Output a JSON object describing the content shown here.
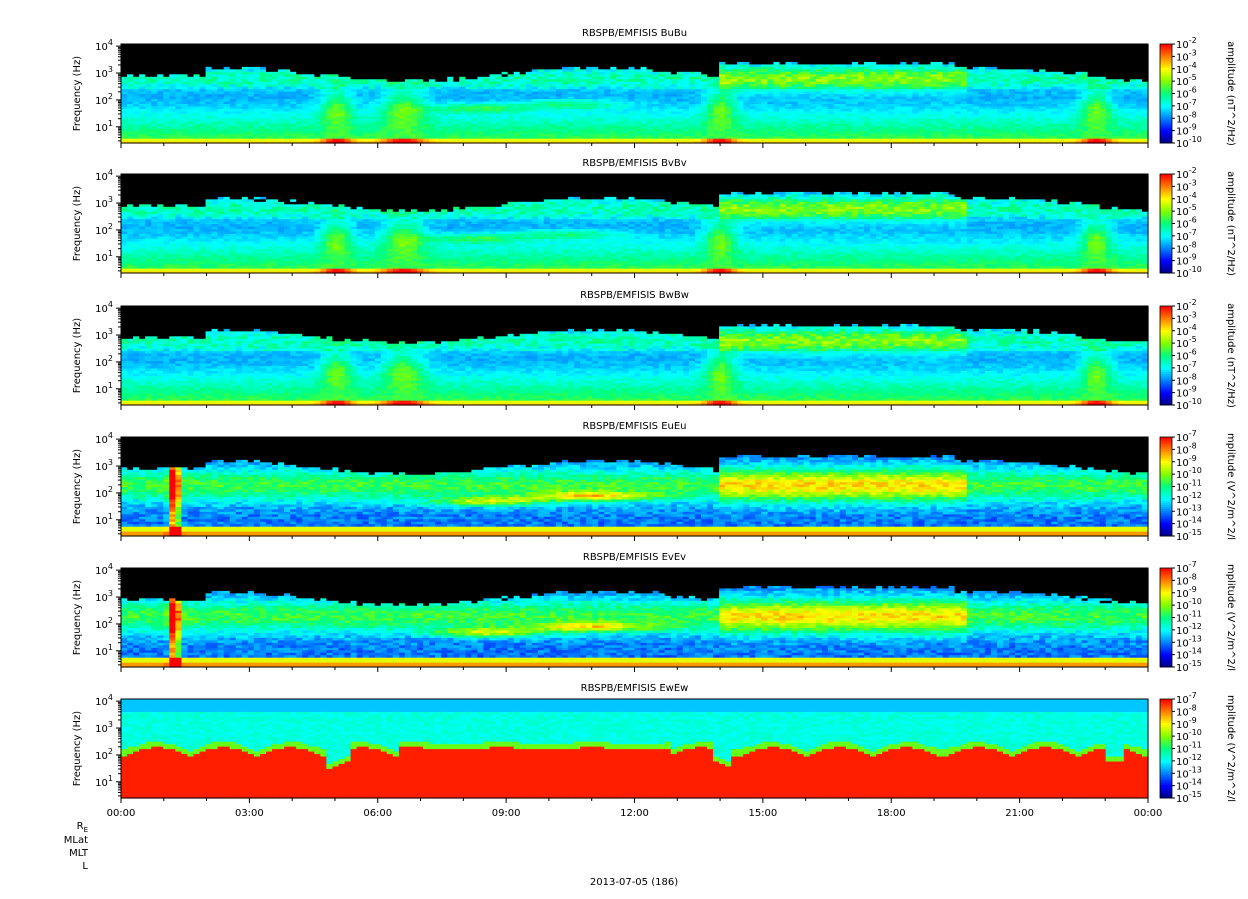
{
  "chart_data": {
    "type": "heatmap",
    "date_label": "2013-07-05 (186)",
    "x_ticks": [
      "00:00",
      "03:00",
      "06:00",
      "09:00",
      "12:00",
      "15:00",
      "18:00",
      "21:00",
      "00:00"
    ],
    "x_range_hours": [
      0,
      24
    ],
    "ephemeris_labels": {
      "re": "R",
      "re_sub": "E",
      "mlat": "MLat",
      "mlt": "MLT",
      "l": "L"
    },
    "y_label": "Frequency (Hz)",
    "y_scale": "log",
    "y_range_hz": [
      2.5,
      12000
    ],
    "y_ticks": [
      {
        "base": "10",
        "exp": "1",
        "value": 10
      },
      {
        "base": "10",
        "exp": "2",
        "value": 100
      },
      {
        "base": "10",
        "exp": "3",
        "value": 1000
      },
      {
        "base": "10",
        "exp": "4",
        "value": 10000
      }
    ],
    "colormap": [
      "#000080",
      "#0000ff",
      "#0080ff",
      "#00ffff",
      "#00ff80",
      "#80ff00",
      "#ffff00",
      "#ff8000",
      "#ff0000"
    ],
    "panels": [
      {
        "title": "RBSPB/EMFISIS  BuBu",
        "kind": "B",
        "cb_label": "amplitude (nT^2/Hz)",
        "cb_exps": [
          "-2",
          "-3",
          "-4",
          "-5",
          "-6",
          "-7",
          "-8",
          "-9",
          "-10"
        ],
        "cb_range_log10": [
          -10,
          -2
        ]
      },
      {
        "title": "RBSPB/EMFISIS  BvBv",
        "kind": "B",
        "cb_label": "amplitude (nT^2/Hz)",
        "cb_exps": [
          "-2",
          "-3",
          "-4",
          "-5",
          "-6",
          "-7",
          "-8",
          "-9",
          "-10"
        ],
        "cb_range_log10": [
          -10,
          -2
        ]
      },
      {
        "title": "RBSPB/EMFISIS  BwBw",
        "kind": "Bw",
        "cb_label": "amplitude (nT^2/Hz)",
        "cb_exps": [
          "-2",
          "-3",
          "-4",
          "-5",
          "-6",
          "-7",
          "-8",
          "-9",
          "-10"
        ],
        "cb_range_log10": [
          -10,
          -2
        ]
      },
      {
        "title": "RBSPB/EMFISIS  EuEu",
        "kind": "E",
        "cb_label": "mplitude (V^2/m^2/l",
        "cb_exps": [
          "-7",
          "-8",
          "-9",
          "-10",
          "-11",
          "-12",
          "-13",
          "-14",
          "-15"
        ],
        "cb_range_log10": [
          -15,
          -7
        ]
      },
      {
        "title": "RBSPB/EMFISIS  EvEv",
        "kind": "E",
        "cb_label": "mplitude (V^2/m^2/l",
        "cb_exps": [
          "-7",
          "-8",
          "-9",
          "-10",
          "-11",
          "-12",
          "-13",
          "-14",
          "-15"
        ],
        "cb_range_log10": [
          -15,
          -7
        ]
      },
      {
        "title": "RBSPB/EMFISIS  EwEw",
        "kind": "Ew",
        "cb_label": "mplitude (V^2/m^2/l",
        "cb_exps": [
          "-7",
          "-8",
          "-9",
          "-10",
          "-11",
          "-12",
          "-13",
          "-14",
          "-15"
        ],
        "cb_range_log10": [
          -15,
          -7
        ]
      }
    ]
  }
}
